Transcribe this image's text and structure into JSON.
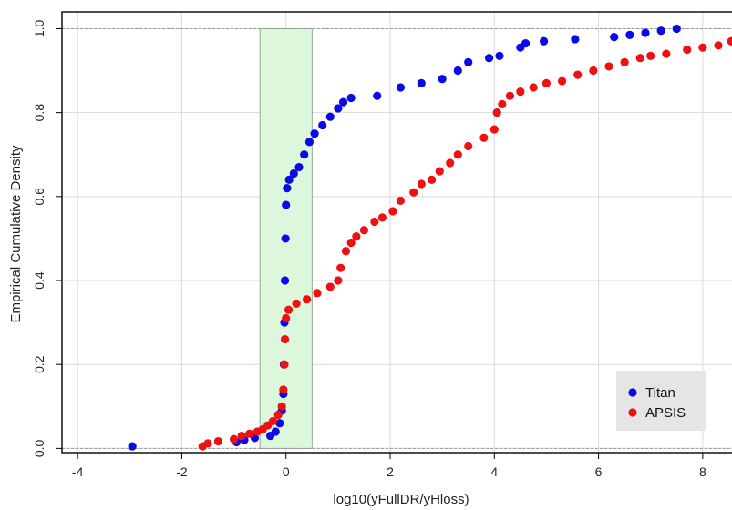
{
  "chart_data": {
    "type": "scatter",
    "title": "",
    "xlabel": "log10(yFullDR/yHloss)",
    "ylabel": "Empirical Cumulative Density",
    "xlim": [
      -4.3,
      8.65
    ],
    "ylim": [
      -0.01,
      1.04
    ],
    "x_ticks": [
      -4,
      -2,
      0,
      2,
      4,
      6,
      8
    ],
    "x_tick_labels": [
      "-4",
      "-2",
      "0",
      "2",
      "4",
      "6",
      "8"
    ],
    "y_ticks": [
      0.0,
      0.2,
      0.4,
      0.6,
      0.8,
      1.0
    ],
    "y_tick_labels": [
      "0.0",
      "0.2",
      "0.4",
      "0.6",
      "0.8",
      "1.0"
    ],
    "grid": true,
    "legend_position": "bottom-right",
    "reference_lines_y": [
      0.0,
      1.0
    ],
    "shaded_region": {
      "x": [
        -0.5,
        0.5
      ],
      "y": [
        0.0,
        1.0
      ],
      "color": "#dcf7dc"
    },
    "series": [
      {
        "name": "Titan",
        "color": "#0a0ae6",
        "points": [
          [
            -2.95,
            0.005
          ],
          [
            -0.95,
            0.015
          ],
          [
            -0.8,
            0.02
          ],
          [
            -0.6,
            0.025
          ],
          [
            -0.3,
            0.03
          ],
          [
            -0.2,
            0.04
          ],
          [
            -0.12,
            0.06
          ],
          [
            -0.08,
            0.09
          ],
          [
            -0.05,
            0.13
          ],
          [
            -0.04,
            0.2
          ],
          [
            -0.03,
            0.3
          ],
          [
            -0.02,
            0.4
          ],
          [
            -0.01,
            0.5
          ],
          [
            0.0,
            0.58
          ],
          [
            0.02,
            0.62
          ],
          [
            0.06,
            0.64
          ],
          [
            0.15,
            0.655
          ],
          [
            0.25,
            0.67
          ],
          [
            0.35,
            0.7
          ],
          [
            0.45,
            0.73
          ],
          [
            0.55,
            0.75
          ],
          [
            0.7,
            0.77
          ],
          [
            0.85,
            0.79
          ],
          [
            1.0,
            0.81
          ],
          [
            1.1,
            0.825
          ],
          [
            1.25,
            0.835
          ],
          [
            1.75,
            0.84
          ],
          [
            2.2,
            0.86
          ],
          [
            2.6,
            0.87
          ],
          [
            3.0,
            0.88
          ],
          [
            3.3,
            0.9
          ],
          [
            3.5,
            0.92
          ],
          [
            3.9,
            0.93
          ],
          [
            4.1,
            0.935
          ],
          [
            4.5,
            0.955
          ],
          [
            4.6,
            0.965
          ],
          [
            4.95,
            0.97
          ],
          [
            5.55,
            0.975
          ],
          [
            6.3,
            0.98
          ],
          [
            6.6,
            0.985
          ],
          [
            6.9,
            0.99
          ],
          [
            7.2,
            0.995
          ],
          [
            7.5,
            1.0
          ]
        ]
      },
      {
        "name": "APSIS",
        "color": "#ee1111",
        "points": [
          [
            -1.6,
            0.005
          ],
          [
            -1.5,
            0.012
          ],
          [
            -1.3,
            0.017
          ],
          [
            -1.0,
            0.022
          ],
          [
            -0.85,
            0.03
          ],
          [
            -0.7,
            0.035
          ],
          [
            -0.55,
            0.04
          ],
          [
            -0.45,
            0.045
          ],
          [
            -0.35,
            0.055
          ],
          [
            -0.25,
            0.065
          ],
          [
            -0.15,
            0.08
          ],
          [
            -0.08,
            0.1
          ],
          [
            -0.05,
            0.14
          ],
          [
            -0.03,
            0.2
          ],
          [
            -0.02,
            0.26
          ],
          [
            0.0,
            0.31
          ],
          [
            0.05,
            0.33
          ],
          [
            0.2,
            0.345
          ],
          [
            0.4,
            0.355
          ],
          [
            0.6,
            0.37
          ],
          [
            0.85,
            0.385
          ],
          [
            1.0,
            0.4
          ],
          [
            1.05,
            0.43
          ],
          [
            1.15,
            0.47
          ],
          [
            1.25,
            0.49
          ],
          [
            1.35,
            0.505
          ],
          [
            1.5,
            0.52
          ],
          [
            1.7,
            0.54
          ],
          [
            1.85,
            0.55
          ],
          [
            2.05,
            0.565
          ],
          [
            2.2,
            0.59
          ],
          [
            2.45,
            0.61
          ],
          [
            2.6,
            0.63
          ],
          [
            2.8,
            0.64
          ],
          [
            2.95,
            0.66
          ],
          [
            3.15,
            0.68
          ],
          [
            3.3,
            0.7
          ],
          [
            3.5,
            0.72
          ],
          [
            3.8,
            0.74
          ],
          [
            4.0,
            0.76
          ],
          [
            4.05,
            0.8
          ],
          [
            4.15,
            0.82
          ],
          [
            4.3,
            0.84
          ],
          [
            4.5,
            0.85
          ],
          [
            4.75,
            0.86
          ],
          [
            5.0,
            0.87
          ],
          [
            5.3,
            0.875
          ],
          [
            5.6,
            0.89
          ],
          [
            5.9,
            0.9
          ],
          [
            6.2,
            0.91
          ],
          [
            6.5,
            0.92
          ],
          [
            6.8,
            0.93
          ],
          [
            7.0,
            0.935
          ],
          [
            7.3,
            0.94
          ],
          [
            7.7,
            0.95
          ],
          [
            8.0,
            0.955
          ],
          [
            8.3,
            0.96
          ],
          [
            8.55,
            0.97
          ]
        ]
      }
    ]
  }
}
